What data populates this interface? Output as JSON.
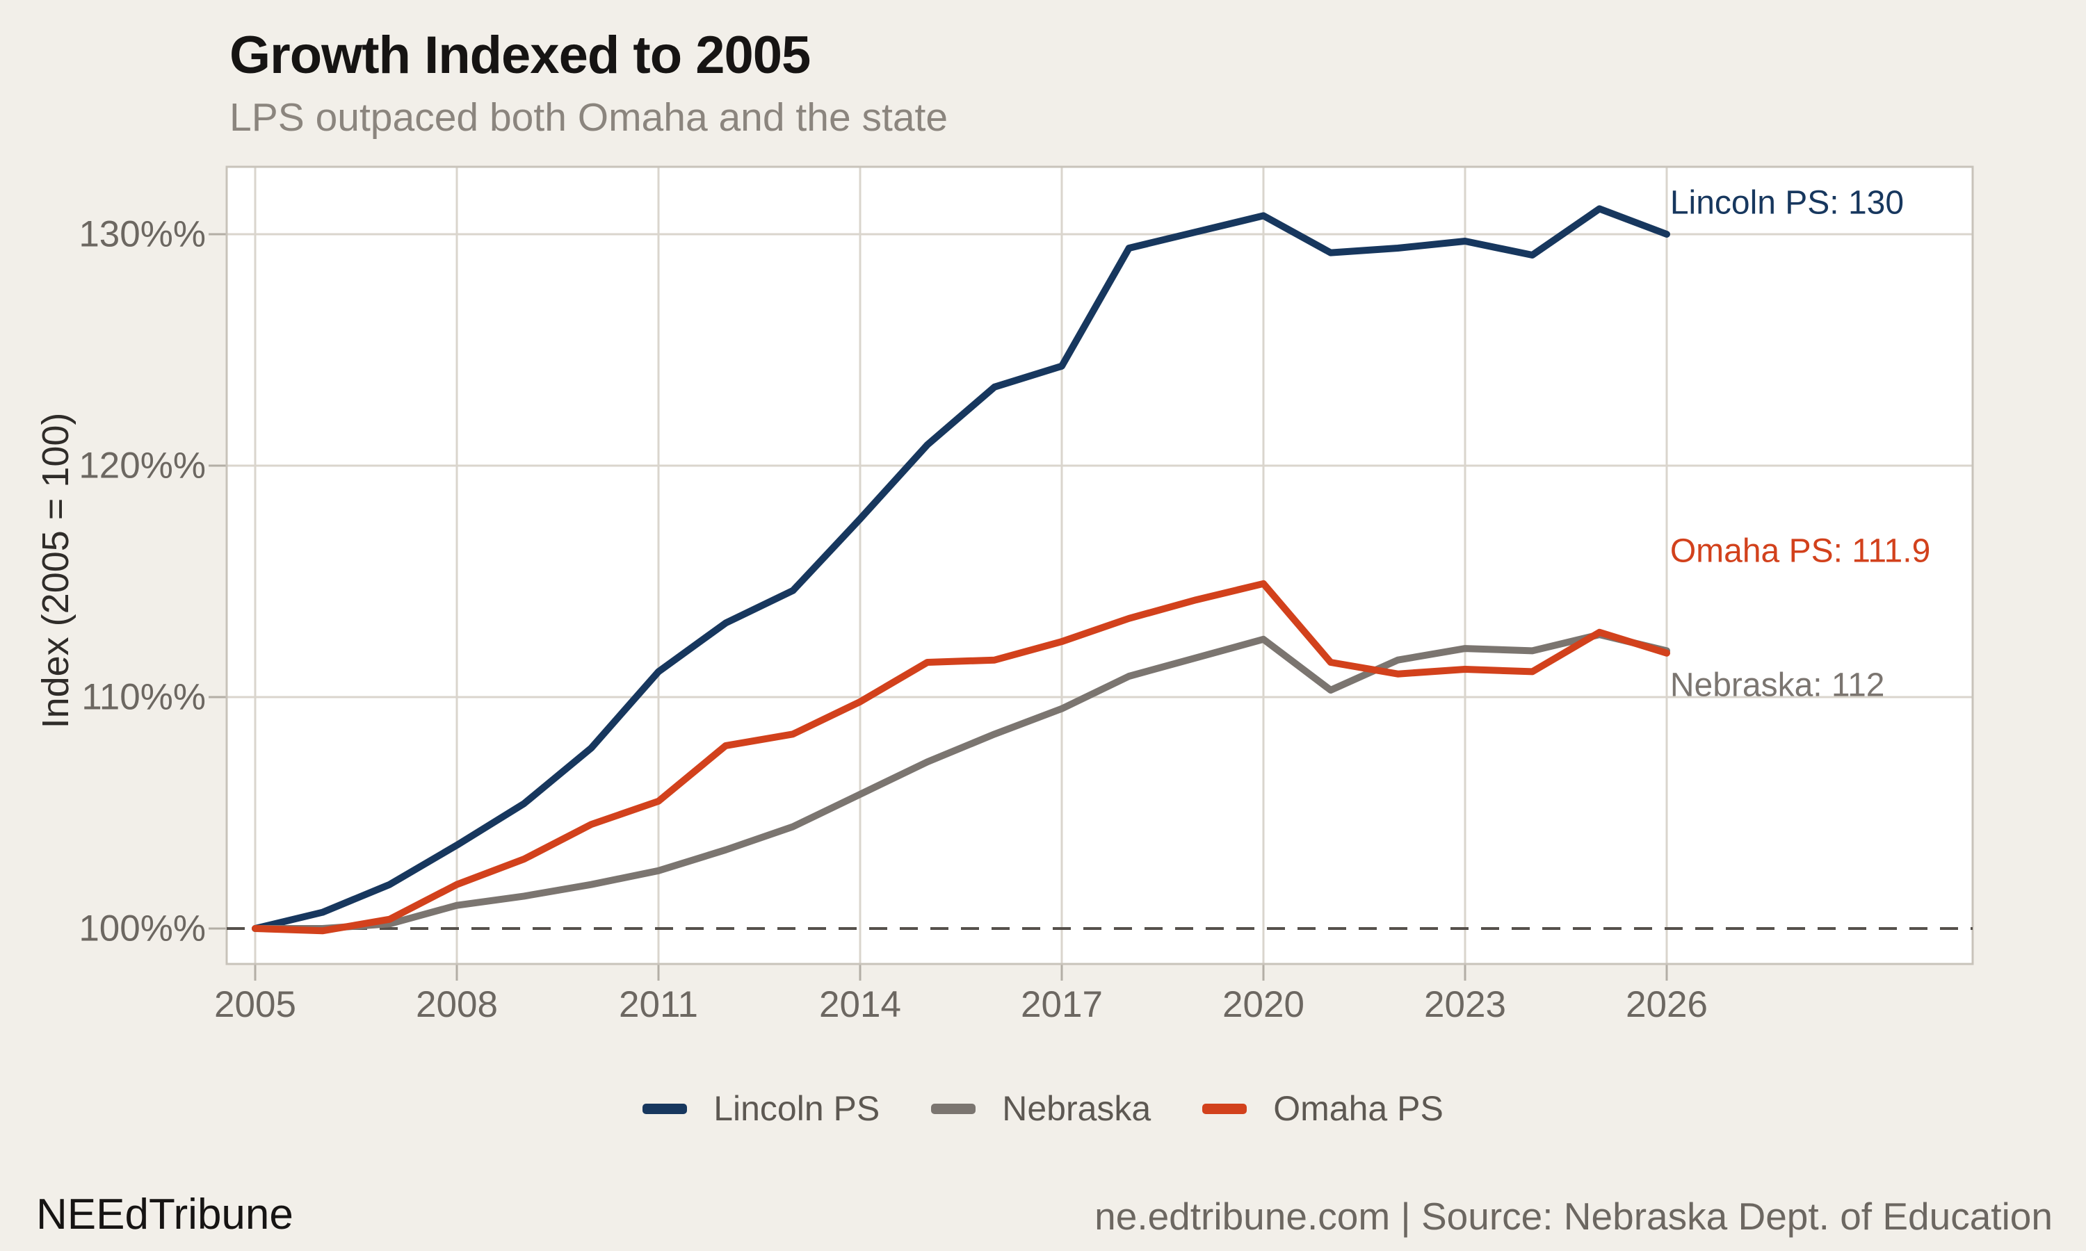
{
  "title": "Growth Indexed to 2005",
  "subtitle": "LPS outpaced both Omaha and the state",
  "y_axis_title": "Index (2005 = 100)",
  "footer": {
    "brand": "NEEdTribune",
    "source": "ne.edtribune.com | Source: Nebraska Dept. of Education"
  },
  "colors": {
    "background": "#f2efe9",
    "plot_background": "#ffffff",
    "grid": "#dad5cd",
    "frame": "#c8c3ba",
    "tick": "#b3aea5",
    "reference_line": "#55504b",
    "lincoln": "#17375e",
    "nebraska": "#7b7570",
    "omaha": "#d2411c"
  },
  "chart_data": {
    "type": "line",
    "title": "Growth Indexed to 2005",
    "subtitle": "LPS outpaced both Omaha and the state",
    "xlabel": "",
    "ylabel": "Index (2005 = 100)",
    "x": [
      2005,
      2006,
      2007,
      2008,
      2009,
      2010,
      2011,
      2012,
      2013,
      2014,
      2015,
      2016,
      2017,
      2018,
      2019,
      2020,
      2021,
      2022,
      2023,
      2024,
      2025,
      2026
    ],
    "series": [
      {
        "name": "Lincoln PS",
        "color": "#17375e",
        "values": [
          100,
          100.7,
          101.9,
          103.6,
          105.4,
          107.8,
          111.1,
          113.2,
          114.6,
          117.7,
          120.9,
          123.4,
          124.3,
          129.4,
          130.1,
          130.8,
          129.2,
          129.4,
          129.7,
          129.1,
          131.1,
          130
        ]
      },
      {
        "name": "Nebraska",
        "color": "#7b7570",
        "values": [
          100,
          100.0,
          100.2,
          101.0,
          101.4,
          101.9,
          102.5,
          103.4,
          104.4,
          105.8,
          107.2,
          108.4,
          109.5,
          110.9,
          111.7,
          112.5,
          110.3,
          111.6,
          112.1,
          112.0,
          112.7,
          112
        ]
      },
      {
        "name": "Omaha PS",
        "color": "#d2411c",
        "values": [
          100,
          99.9,
          100.4,
          101.9,
          103.0,
          104.5,
          105.5,
          107.9,
          108.4,
          109.8,
          111.5,
          111.6,
          112.4,
          113.4,
          114.2,
          114.9,
          111.5,
          111.0,
          111.2,
          111.1,
          112.8,
          111.9
        ]
      }
    ],
    "annotations": [
      {
        "text": "Lincoln PS: 130",
        "color": "#17375e",
        "x_year": 2026.05,
        "y_value": 131.35
      },
      {
        "text": "Omaha PS: 111.9",
        "color": "#d2411c",
        "x_year": 2026.05,
        "y_value": 116.3
      },
      {
        "text": "Nebraska: 112",
        "color": "#7b7570",
        "x_year": 2026.05,
        "y_value": 110.5
      }
    ],
    "legend": [
      {
        "label": "Lincoln PS",
        "color": "#17375e"
      },
      {
        "label": "Nebraska",
        "color": "#7b7570"
      },
      {
        "label": "Omaha PS",
        "color": "#d2411c"
      }
    ],
    "x_ticks": [
      2005,
      2008,
      2011,
      2014,
      2017,
      2020,
      2023,
      2026
    ],
    "x_tick_labels": [
      "2005",
      "2008",
      "2011",
      "2014",
      "2017",
      "2020",
      "2023",
      "2026"
    ],
    "y_ticks": [
      100,
      110,
      120,
      130
    ],
    "y_tick_labels": [
      "100%%",
      "110%%",
      "120%%",
      "130%%"
    ],
    "xlim": [
      2004.58,
      2030.55
    ],
    "ylim": [
      98.5,
      132.9
    ],
    "reference_line": {
      "value": 100,
      "style": "dashed"
    },
    "grid": true,
    "legend_position": "bottom"
  }
}
